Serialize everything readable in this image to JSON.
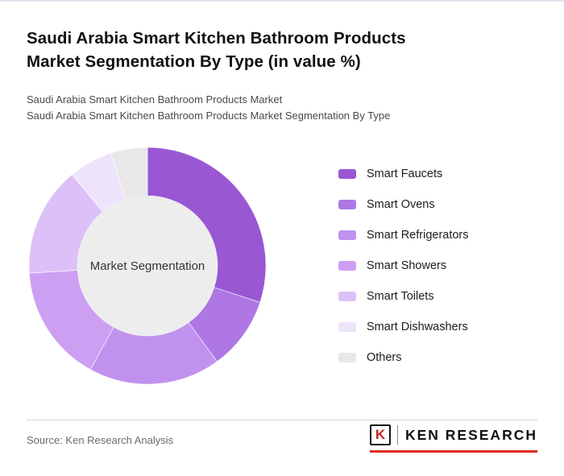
{
  "header": {
    "title_line1": "Saudi Arabia Smart Kitchen Bathroom Products",
    "title_line2": "Market Segmentation By Type (in value %)",
    "subtitle1": "Saudi Arabia Smart Kitchen Bathroom Products Market",
    "subtitle2": "Saudi Arabia Smart Kitchen Bathroom Products Market Segmentation By Type"
  },
  "chart_data": {
    "type": "pie",
    "variant": "donut",
    "title": "Saudi Arabia Smart Kitchen Bathroom Products Market Segmentation By Type (in value %)",
    "center_label": "Market Segmentation",
    "legend_position": "right",
    "start_angle_deg": 0,
    "direction": "clockwise",
    "segments": [
      {
        "label": "Smart Faucets",
        "value": 30,
        "color": "#9a57d4"
      },
      {
        "label": "Smart Ovens",
        "value": 10,
        "color": "#ae77e4"
      },
      {
        "label": "Smart Refrigerators",
        "value": 18,
        "color": "#c092ee"
      },
      {
        "label": "Smart Showers",
        "value": 16,
        "color": "#cd9ff2"
      },
      {
        "label": "Smart Toilets",
        "value": 15,
        "color": "#dcc0f7"
      },
      {
        "label": "Smart Dishwashers",
        "value": 6,
        "color": "#ede4fb"
      },
      {
        "label": "Others",
        "value": 5,
        "color": "#e8e8e8"
      }
    ],
    "center_circle_color": "#ededed"
  },
  "footer": {
    "source": "Source: Ken Research Analysis",
    "logo_mark": "K",
    "logo_text": "KEN RESEARCH"
  }
}
